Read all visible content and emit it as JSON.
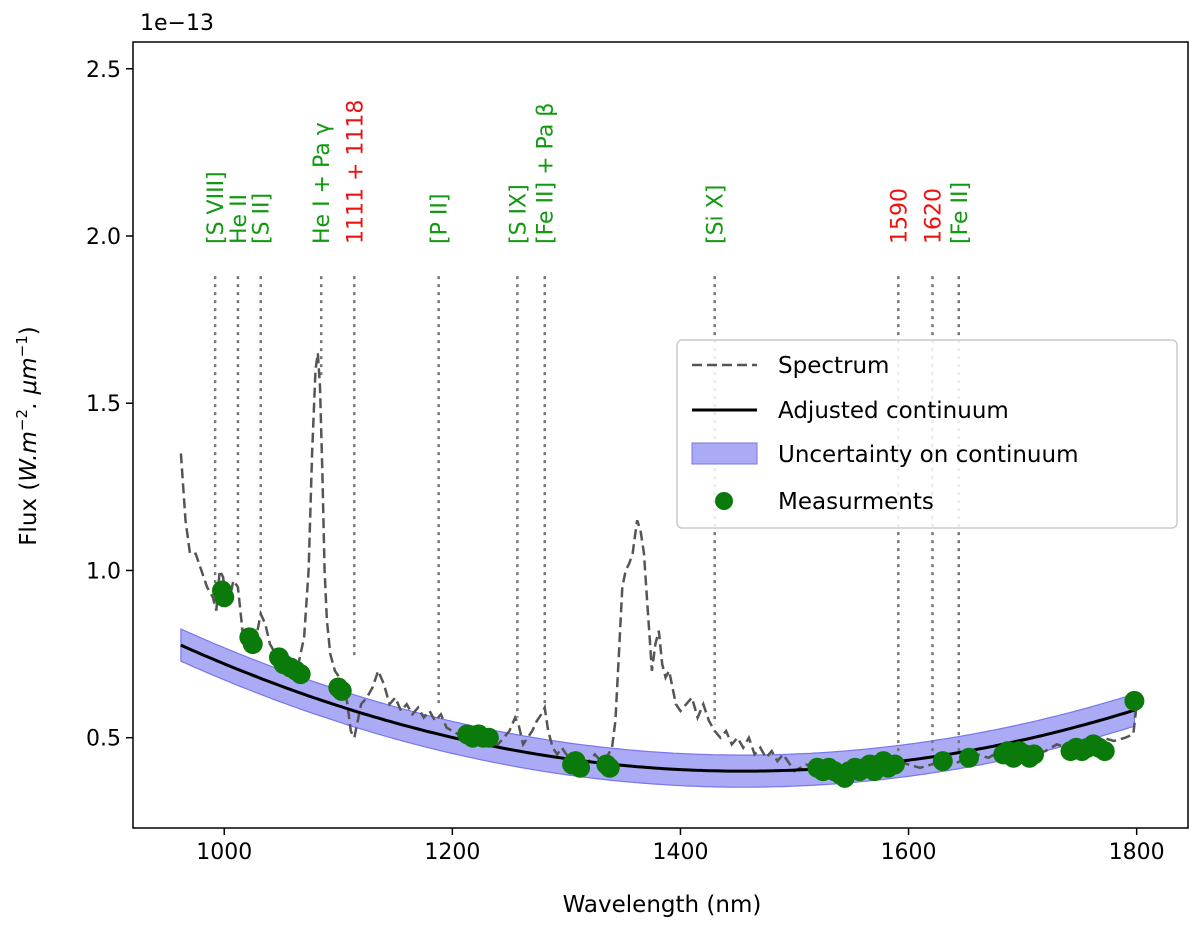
{
  "chart_data": {
    "type": "line",
    "xlabel": "Wavelength (nm)",
    "ylabel_prefix": "Flux (",
    "ylabel_math": "W.m",
    "ylabel_exp1": "−2",
    "ylabel_sep": ". μm",
    "ylabel_exp2": "−1",
    "ylabel_suffix": ")",
    "offset_text": "1e−13",
    "xlim": [
      920,
      1845
    ],
    "ylim": [
      0.23,
      2.58
    ],
    "xticks": [
      1000,
      1200,
      1400,
      1600,
      1800
    ],
    "xtick_labels": [
      "1000",
      "1200",
      "1400",
      "1600",
      "1800"
    ],
    "yticks": [
      0.5,
      1.0,
      1.5,
      2.0,
      2.5
    ],
    "ytick_labels": [
      "0.5",
      "1.0",
      "1.5",
      "2.0",
      "2.5"
    ],
    "legend_position": "center-right",
    "legend": [
      {
        "key": "spectrum",
        "label": "Spectrum"
      },
      {
        "key": "continuum",
        "label": "Adjusted continuum"
      },
      {
        "key": "band",
        "label": "Uncertainty on continuum"
      },
      {
        "key": "measurements",
        "label": "Measurments"
      }
    ],
    "colors": {
      "spectrum": "#555555",
      "continuum": "#000000",
      "band_fill": "#aaaaf5",
      "band_edge": "#7777ee",
      "measurement": "#0a7a0a",
      "line_marker": "#777777",
      "label_green": "#119911",
      "label_red": "#ee1111"
    },
    "continuum": {
      "x_start": 962,
      "x_end": 1800,
      "a": 0.4,
      "b": 1.55e-06,
      "x0": 1455,
      "band_half_width": 0.048
    },
    "spectrum": {
      "x": [
        962,
        966,
        970,
        975,
        980,
        985,
        990,
        993,
        996,
        999,
        1002,
        1005,
        1008,
        1012,
        1016,
        1020,
        1024,
        1028,
        1032,
        1036,
        1040,
        1045,
        1050,
        1055,
        1060,
        1065,
        1070,
        1074,
        1077,
        1080,
        1082,
        1084,
        1086,
        1088,
        1090,
        1093,
        1097,
        1101,
        1105,
        1108,
        1111,
        1114,
        1117,
        1120,
        1125,
        1130,
        1135,
        1140,
        1145,
        1150,
        1155,
        1160,
        1165,
        1170,
        1175,
        1180,
        1185,
        1190,
        1195,
        1200,
        1210,
        1220,
        1230,
        1240,
        1245,
        1250,
        1255,
        1258,
        1262,
        1266,
        1270,
        1274,
        1278,
        1281,
        1284,
        1288,
        1292,
        1296,
        1300,
        1305,
        1310,
        1315,
        1320,
        1325,
        1330,
        1335,
        1340,
        1343,
        1346,
        1349,
        1352,
        1355,
        1358,
        1362,
        1365,
        1368,
        1370,
        1372,
        1375,
        1378,
        1381,
        1384,
        1387,
        1390,
        1393,
        1396,
        1400,
        1405,
        1410,
        1415,
        1420,
        1425,
        1430,
        1435,
        1440,
        1445,
        1450,
        1455,
        1460,
        1465,
        1470,
        1475,
        1480,
        1485,
        1490,
        1500,
        1510,
        1520,
        1530,
        1540,
        1550,
        1560,
        1570,
        1580,
        1590,
        1600,
        1610,
        1620,
        1630,
        1640,
        1650,
        1660,
        1670,
        1680,
        1690,
        1700,
        1710,
        1720,
        1730,
        1740,
        1750,
        1760,
        1770,
        1780,
        1790,
        1797,
        1800
      ],
      "y": [
        1.35,
        1.15,
        1.05,
        1.05,
        1.0,
        0.95,
        0.92,
        0.88,
        1.0,
        0.98,
        0.9,
        0.92,
        0.97,
        0.95,
        0.82,
        0.8,
        0.79,
        0.8,
        0.87,
        0.84,
        0.78,
        0.75,
        0.73,
        0.72,
        0.7,
        0.72,
        0.8,
        1.0,
        1.35,
        1.6,
        1.65,
        1.55,
        1.3,
        1.0,
        0.85,
        0.75,
        0.7,
        0.68,
        0.66,
        0.6,
        0.52,
        0.5,
        0.55,
        0.6,
        0.62,
        0.65,
        0.7,
        0.66,
        0.6,
        0.62,
        0.58,
        0.6,
        0.57,
        0.59,
        0.56,
        0.58,
        0.55,
        0.57,
        0.53,
        0.52,
        0.5,
        0.52,
        0.5,
        0.48,
        0.5,
        0.52,
        0.56,
        0.54,
        0.48,
        0.5,
        0.52,
        0.55,
        0.57,
        0.59,
        0.52,
        0.47,
        0.45,
        0.47,
        0.45,
        0.43,
        0.44,
        0.42,
        0.43,
        0.45,
        0.43,
        0.44,
        0.47,
        0.55,
        0.75,
        0.95,
        1.0,
        1.02,
        1.05,
        1.15,
        1.12,
        1.05,
        0.95,
        0.85,
        0.7,
        0.78,
        0.82,
        0.72,
        0.68,
        0.7,
        0.65,
        0.6,
        0.58,
        0.6,
        0.62,
        0.56,
        0.6,
        0.55,
        0.52,
        0.5,
        0.52,
        0.48,
        0.5,
        0.47,
        0.5,
        0.45,
        0.47,
        0.44,
        0.46,
        0.43,
        0.45,
        0.4,
        0.42,
        0.41,
        0.43,
        0.4,
        0.41,
        0.4,
        0.42,
        0.41,
        0.43,
        0.42,
        0.41,
        0.42,
        0.43,
        0.42,
        0.44,
        0.45,
        0.44,
        0.46,
        0.45,
        0.47,
        0.45,
        0.46,
        0.48,
        0.47,
        0.49,
        0.48,
        0.5,
        0.49,
        0.5,
        0.51,
        0.6
      ]
    },
    "measurements": {
      "x": [
        998,
        1000,
        1022,
        1025,
        1048,
        1052,
        1058,
        1063,
        1067,
        1100,
        1103,
        1213,
        1218,
        1223,
        1227,
        1232,
        1305,
        1308,
        1312,
        1335,
        1338,
        1520,
        1525,
        1530,
        1535,
        1540,
        1544,
        1548,
        1553,
        1557,
        1562,
        1566,
        1570,
        1574,
        1578,
        1582,
        1588,
        1630,
        1653,
        1683,
        1687,
        1692,
        1697,
        1702,
        1706,
        1710,
        1742,
        1747,
        1752,
        1757,
        1762,
        1767,
        1772,
        1798
      ],
      "y": [
        0.94,
        0.92,
        0.8,
        0.78,
        0.74,
        0.72,
        0.71,
        0.7,
        0.69,
        0.65,
        0.64,
        0.51,
        0.5,
        0.51,
        0.5,
        0.5,
        0.42,
        0.43,
        0.41,
        0.42,
        0.41,
        0.41,
        0.4,
        0.41,
        0.4,
        0.39,
        0.38,
        0.4,
        0.41,
        0.4,
        0.41,
        0.42,
        0.4,
        0.42,
        0.43,
        0.41,
        0.42,
        0.43,
        0.44,
        0.45,
        0.46,
        0.44,
        0.46,
        0.45,
        0.44,
        0.45,
        0.46,
        0.47,
        0.46,
        0.47,
        0.48,
        0.47,
        0.46,
        0.61
      ]
    },
    "emission_lines": [
      {
        "x": 992,
        "y_top": 1.88,
        "y_bot": 0.92,
        "label": "[S VIII]",
        "color": "green"
      },
      {
        "x": 1012,
        "y_top": 1.88,
        "y_bot": 0.98,
        "label": "He II",
        "color": "green"
      },
      {
        "x": 1032,
        "y_top": 1.88,
        "y_bot": 0.86,
        "label": "[S II]",
        "color": "green"
      },
      {
        "x": 1085,
        "y_top": 1.88,
        "y_bot": 1.58,
        "label": "He I + Pa γ",
        "color": "green"
      },
      {
        "x": 1114,
        "y_top": 1.88,
        "y_bot": 0.74,
        "label": "1111 + 1118",
        "color": "red"
      },
      {
        "x": 1188,
        "y_top": 1.88,
        "y_bot": 0.6,
        "label": "[P II]",
        "color": "green"
      },
      {
        "x": 1257,
        "y_top": 1.88,
        "y_bot": 0.56,
        "label": "[S IX]",
        "color": "green"
      },
      {
        "x": 1281,
        "y_top": 1.88,
        "y_bot": 0.6,
        "label": "[Fe II] + Pa β",
        "color": "green"
      },
      {
        "x": 1430,
        "y_top": 1.88,
        "y_bot": 0.54,
        "label": "[Si X]",
        "color": "green"
      },
      {
        "x": 1591,
        "y_top": 1.88,
        "y_bot": 0.43,
        "label": "1590",
        "color": "red"
      },
      {
        "x": 1621,
        "y_top": 1.88,
        "y_bot": 0.44,
        "label": "1620",
        "color": "red"
      },
      {
        "x": 1644,
        "y_top": 1.88,
        "y_bot": 0.45,
        "label": "[Fe II]",
        "color": "green"
      }
    ]
  }
}
